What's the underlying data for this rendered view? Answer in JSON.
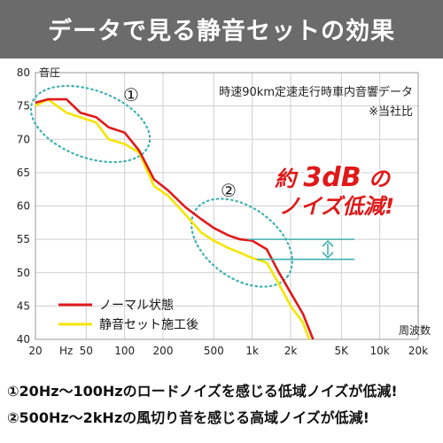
{
  "header": {
    "title": "データで見る静音セットの効果"
  },
  "chart_data": {
    "type": "line",
    "title": "",
    "xlabel": "周波数",
    "ylabel": "音圧",
    "xscale": "log",
    "xlim": [
      20,
      20000
    ],
    "ylim": [
      40,
      80
    ],
    "xticks": [
      {
        "v": 20,
        "label": "20"
      },
      {
        "v": 50,
        "label": "50"
      },
      {
        "v": 100,
        "label": "100"
      },
      {
        "v": 200,
        "label": "200"
      },
      {
        "v": 500,
        "label": "500"
      },
      {
        "v": 1000,
        "label": "1k"
      },
      {
        "v": 2000,
        "label": "2k"
      },
      {
        "v": 5000,
        "label": "5K"
      },
      {
        "v": 10000,
        "label": "10k"
      },
      {
        "v": 20000,
        "label": "20k"
      }
    ],
    "xunit": "Hz",
    "yticks": [
      40,
      45,
      50,
      55,
      60,
      65,
      70,
      75,
      80
    ],
    "grid": true,
    "legend_position": "bottom-left",
    "series": [
      {
        "name": "ノーマル状態",
        "color": "#e01919",
        "points": [
          [
            20,
            75.5
          ],
          [
            25,
            76.0
          ],
          [
            35,
            76.0
          ],
          [
            45,
            74.0
          ],
          [
            60,
            73.3
          ],
          [
            75,
            71.8
          ],
          [
            100,
            71.0
          ],
          [
            130,
            68.3
          ],
          [
            170,
            64.0
          ],
          [
            220,
            62.3
          ],
          [
            300,
            59.8
          ],
          [
            400,
            58.0
          ],
          [
            500,
            56.7
          ],
          [
            650,
            55.6
          ],
          [
            800,
            55.0
          ],
          [
            1000,
            54.8
          ],
          [
            1300,
            53.5
          ],
          [
            1600,
            50.2
          ],
          [
            2000,
            47.0
          ],
          [
            2500,
            43.8
          ],
          [
            3000,
            40.0
          ]
        ]
      },
      {
        "name": "静音セット施工後",
        "color": "#f5e500",
        "points": [
          [
            20,
            75.0
          ],
          [
            25,
            76.0
          ],
          [
            35,
            74.0
          ],
          [
            45,
            73.3
          ],
          [
            60,
            72.5
          ],
          [
            75,
            70.0
          ],
          [
            100,
            69.3
          ],
          [
            130,
            68.0
          ],
          [
            170,
            63.0
          ],
          [
            220,
            61.5
          ],
          [
            300,
            58.7
          ],
          [
            400,
            56.0
          ],
          [
            500,
            54.8
          ],
          [
            650,
            53.7
          ],
          [
            800,
            53.0
          ],
          [
            1000,
            52.2
          ],
          [
            1300,
            51.5
          ],
          [
            1600,
            48.5
          ],
          [
            2000,
            45.0
          ],
          [
            2500,
            42.5
          ],
          [
            2800,
            40.0
          ]
        ]
      }
    ],
    "annotations": {
      "condition": "時速90km定速走行時車内音響データ",
      "disclaimer": "※当社比",
      "circle1_label": "①",
      "circle2_label": "②",
      "reduction_prefix": "約",
      "reduction_value": "3dB",
      "reduction_suffix": "の",
      "reduction_line2": "ノイズ低減!",
      "reduction_marker_y": [
        55,
        52
      ]
    },
    "colors": {
      "grid": "#cfcfcf",
      "highlight": "#3fb0b0",
      "emphasis": "#e01919"
    }
  },
  "notes": [
    "①20Hz〜100Hzのロードノイズを感じる低域ノイズが低減!",
    "②500Hz〜2kHzの風切り音を感じる高域ノイズが低減!"
  ]
}
